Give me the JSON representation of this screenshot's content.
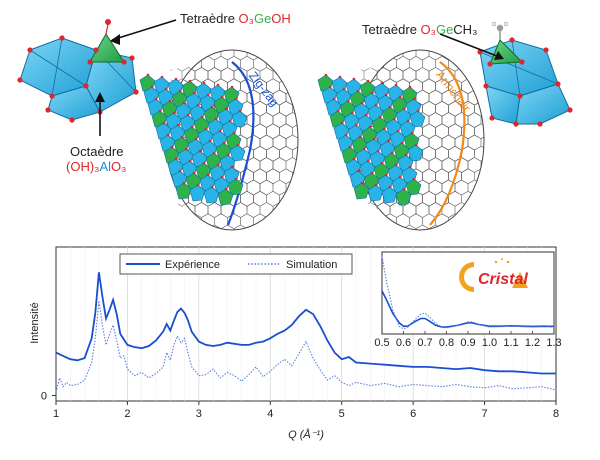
{
  "molecules": {
    "left": {
      "tetra_prefix": "Tetraèdre ",
      "tetra_o3": "O₃",
      "tetra_ge": "Ge",
      "tetra_oh": "OH",
      "octa_line1": "Octaèdre",
      "octa_oh": "(OH)₃",
      "octa_al": "Al",
      "octa_o3": "O₃"
    },
    "right": {
      "tetra_prefix": "Tetraèdre ",
      "tetra_o3": "O₃",
      "tetra_ge": "Ge",
      "tetra_ch3": "CH₃"
    }
  },
  "nanotubes": {
    "left_label": "Zig-zag",
    "right_label": "Armchair"
  },
  "logo": {
    "text": "Cristal"
  },
  "colors": {
    "experience": "#1a4fd0",
    "simulation": "#5a7fe0",
    "zigzag": "#1a4fd0",
    "armchair": "#f08a1c",
    "tetra_green": "#2eb34a",
    "octa_blue": "#29b4e8",
    "oxygen_red": "#e0262b"
  },
  "chart_data": [
    {
      "type": "line",
      "title": "",
      "xlabel": "Q (Å⁻¹)",
      "ylabel": "Intensité",
      "xlim": [
        1,
        8
      ],
      "xticks": [
        "1",
        "2",
        "3",
        "4",
        "5",
        "6",
        "7",
        "8"
      ],
      "yticks": [
        "0"
      ],
      "legend": "top-center",
      "grid": true,
      "series": [
        {
          "name": "Expérience",
          "style": "solid",
          "x": [
            1.0,
            1.1,
            1.2,
            1.3,
            1.4,
            1.5,
            1.55,
            1.6,
            1.65,
            1.7,
            1.75,
            1.8,
            1.85,
            1.9,
            2.0,
            2.1,
            2.2,
            2.3,
            2.4,
            2.5,
            2.55,
            2.6,
            2.65,
            2.7,
            2.75,
            2.8,
            2.85,
            2.9,
            3.0,
            3.1,
            3.2,
            3.3,
            3.4,
            3.5,
            3.6,
            3.7,
            3.8,
            3.9,
            4.0,
            4.1,
            4.2,
            4.3,
            4.4,
            4.5,
            4.6,
            4.7,
            4.8,
            4.9,
            5.0,
            5.1,
            5.2,
            5.4,
            5.6,
            5.8,
            6.0,
            6.2,
            6.4,
            6.6,
            6.8,
            7.0,
            7.2,
            7.4,
            7.6,
            7.8,
            8.0
          ],
          "y": [
            3.9,
            3.6,
            3.3,
            3.2,
            3.4,
            5.2,
            7.5,
            11.2,
            9.0,
            7.0,
            7.8,
            8.7,
            7.4,
            5.6,
            4.6,
            4.4,
            4.3,
            4.5,
            5.0,
            5.8,
            6.5,
            5.9,
            6.8,
            7.6,
            7.9,
            7.5,
            6.8,
            5.8,
            4.9,
            4.6,
            4.5,
            4.6,
            4.8,
            4.7,
            4.6,
            4.6,
            4.8,
            4.9,
            5.2,
            5.6,
            5.9,
            6.4,
            7.2,
            7.8,
            7.4,
            6.3,
            5.0,
            3.9,
            3.3,
            3.5,
            3.0,
            2.9,
            2.8,
            2.7,
            2.6,
            2.6,
            2.5,
            2.4,
            2.5,
            2.3,
            2.2,
            2.2,
            2.1,
            2.0,
            2.0
          ]
        },
        {
          "name": "Simulation",
          "style": "dotted",
          "x": [
            1.0,
            1.05,
            1.1,
            1.15,
            1.2,
            1.3,
            1.4,
            1.5,
            1.55,
            1.6,
            1.65,
            1.7,
            1.75,
            1.8,
            1.85,
            1.9,
            1.95,
            2.0,
            2.1,
            2.2,
            2.3,
            2.4,
            2.5,
            2.55,
            2.6,
            2.65,
            2.7,
            2.75,
            2.8,
            2.85,
            2.9,
            3.0,
            3.1,
            3.2,
            3.3,
            3.4,
            3.5,
            3.6,
            3.7,
            3.8,
            3.9,
            4.0,
            4.1,
            4.2,
            4.3,
            4.4,
            4.5,
            4.6,
            4.7,
            4.8,
            4.9,
            5.0,
            5.1,
            5.2,
            5.4,
            5.6,
            5.8,
            6.0,
            6.2,
            6.4,
            6.6,
            6.8,
            7.0,
            7.2,
            7.4,
            7.6,
            7.8,
            8.0
          ],
          "y": [
            0.3,
            1.6,
            0.8,
            1.2,
            0.9,
            1.0,
            1.4,
            3.0,
            5.2,
            8.6,
            6.4,
            4.6,
            5.6,
            6.4,
            5.0,
            3.4,
            3.6,
            2.4,
            1.8,
            2.1,
            1.6,
            2.0,
            2.6,
            3.9,
            3.2,
            4.6,
            5.4,
            4.8,
            5.2,
            3.8,
            2.6,
            1.8,
            1.9,
            2.4,
            1.6,
            2.1,
            1.8,
            1.3,
            1.9,
            2.6,
            1.7,
            2.2,
            2.8,
            3.3,
            2.7,
            3.8,
            4.9,
            3.4,
            2.3,
            1.4,
            1.8,
            1.2,
            0.9,
            1.2,
            0.9,
            1.1,
            0.8,
            1.0,
            0.9,
            0.8,
            1.0,
            0.8,
            0.7,
            0.9,
            0.6,
            0.7,
            0.8,
            0.5
          ]
        }
      ]
    },
    {
      "type": "line",
      "title": "",
      "xlabel": "",
      "ylabel": "",
      "xlim": [
        0.5,
        1.3
      ],
      "xticks": [
        "0.5",
        "0.6",
        "0.7",
        "0.8",
        "0.9",
        "1.0",
        "1.1",
        "1.2",
        "1.3"
      ],
      "grid": false,
      "series": [
        {
          "name": "Expérience",
          "style": "solid",
          "x": [
            0.5,
            0.52,
            0.55,
            0.58,
            0.6,
            0.62,
            0.65,
            0.68,
            0.7,
            0.72,
            0.75,
            0.78,
            0.8,
            0.85,
            0.9,
            0.92,
            0.95,
            1.0,
            1.05,
            1.1,
            1.15,
            1.2,
            1.25,
            1.3
          ],
          "y": [
            5.0,
            4.0,
            2.4,
            1.3,
            0.9,
            0.9,
            1.4,
            1.8,
            1.8,
            1.5,
            1.0,
            0.8,
            0.8,
            1.0,
            1.3,
            1.3,
            1.1,
            0.9,
            0.9,
            0.95,
            0.9,
            0.88,
            0.9,
            0.88
          ]
        },
        {
          "name": "Simulation",
          "style": "dotted",
          "x": [
            0.5,
            0.52,
            0.55,
            0.58,
            0.6,
            0.62,
            0.65,
            0.68,
            0.7,
            0.72,
            0.75,
            0.78,
            0.8,
            0.85,
            0.9,
            0.92,
            0.95,
            1.0,
            1.05,
            1.1,
            1.15,
            1.2,
            1.25,
            1.3
          ],
          "y": [
            9.0,
            6.2,
            2.8,
            0.9,
            0.6,
            0.8,
            1.6,
            2.3,
            2.4,
            2.0,
            1.2,
            0.8,
            0.7,
            1.0,
            1.4,
            1.4,
            1.1,
            0.8,
            0.85,
            0.9,
            0.85,
            0.8,
            0.82,
            0.8
          ]
        }
      ]
    }
  ]
}
